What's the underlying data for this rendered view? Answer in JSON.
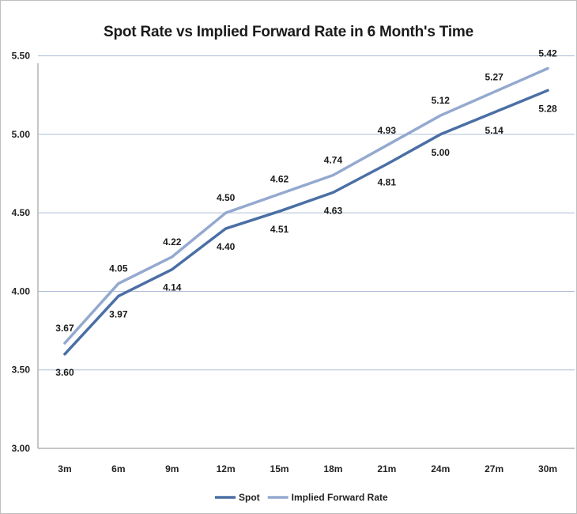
{
  "chart_data": {
    "type": "line",
    "title": "Spot Rate vs Implied Forward Rate in 6 Month's Time",
    "categories": [
      "3m",
      "6m",
      "9m",
      "12m",
      "15m",
      "18m",
      "21m",
      "24m",
      "27m",
      "30m"
    ],
    "series": [
      {
        "name": "Spot",
        "color": "#4a6fa5",
        "label_position": "below",
        "values": [
          3.6,
          3.97,
          4.14,
          4.4,
          4.51,
          4.63,
          4.81,
          5.0,
          5.14,
          5.28
        ],
        "labels": [
          "3.60",
          "3.97",
          "4.14",
          "4.40",
          "4.51",
          "4.63",
          "4.81",
          "5.00",
          "5.14",
          "5.28"
        ]
      },
      {
        "name": "Implied Forward Rate",
        "color": "#94a9cf",
        "label_position": "above",
        "values": [
          3.67,
          4.05,
          4.22,
          4.5,
          4.62,
          4.74,
          4.93,
          5.12,
          5.27,
          5.42
        ],
        "labels": [
          "3.67",
          "4.05",
          "4.22",
          "4.50",
          "4.62",
          "4.74",
          "4.93",
          "5.12",
          "5.27",
          "5.42"
        ]
      }
    ],
    "ylim": [
      3.0,
      5.75
    ],
    "yticks": [
      "3.00",
      "3.50",
      "4.00",
      "4.50",
      "5.00",
      "5.50"
    ],
    "grid": true,
    "legend": "bottom"
  }
}
